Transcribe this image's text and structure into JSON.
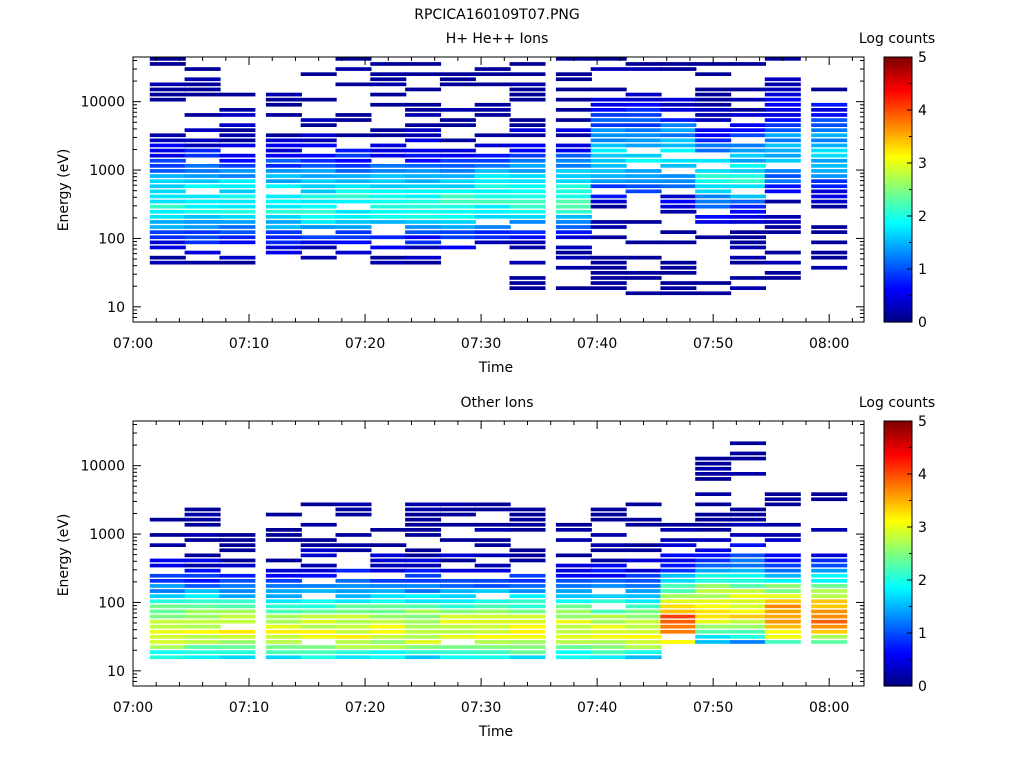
{
  "figure_title": "RPCICA160109T07.PNG",
  "panels": [
    {
      "title": "H+ He++ Ions",
      "ylabel": "Energy (eV)",
      "xlabel": "Time",
      "colorbar_label": "Log counts"
    },
    {
      "title": "Other Ions",
      "ylabel": "Energy (eV)",
      "xlabel": "Time",
      "colorbar_label": "Log counts"
    }
  ],
  "chart_data": [
    {
      "type": "heatmap",
      "title": "H+ He++ Ions",
      "xlabel": "Time",
      "ylabel": "Energy (eV)",
      "x_ticks": [
        "07:00",
        "07:10",
        "07:20",
        "07:30",
        "07:40",
        "07:50",
        "08:00"
      ],
      "xlim": [
        "07:00",
        "08:03"
      ],
      "y_ticks": [
        "10",
        "100",
        "1000",
        "10000"
      ],
      "y_scale": "log",
      "ylim": [
        6,
        45000
      ],
      "colorbar": {
        "label": "Log counts",
        "range": [
          0,
          5
        ],
        "ticks": [
          "0",
          "1",
          "2",
          "3",
          "4",
          "5"
        ],
        "colormap": "jet"
      },
      "time_bins": [
        "07:03",
        "07:06",
        "07:09",
        "07:13",
        "07:16",
        "07:19",
        "07:22",
        "07:25",
        "07:28",
        "07:31",
        "07:34",
        "07:38",
        "07:41",
        "07:44",
        "07:47",
        "07:50",
        "07:53",
        "07:56",
        "08:00"
      ],
      "profiles": [
        {
          "from": "07:03",
          "to": "07:28",
          "energy_range": [
            40,
            42000
          ],
          "peak_energy": 300,
          "peak_log_counts": 2.0
        },
        {
          "from": "07:28",
          "to": "07:38",
          "energy_range": [
            17,
            42000
          ],
          "peak_energy": 350,
          "peak_log_counts": 2.1
        },
        {
          "from": "07:38",
          "to": "07:47",
          "energy_range": [
            13,
            42000
          ],
          "peak_energy": 1400,
          "peak_log_counts": 1.8
        },
        {
          "from": "07:47",
          "to": "07:53",
          "energy_range": [
            15,
            42000
          ],
          "peak_energy": 700,
          "peak_log_counts": 1.9
        },
        {
          "from": "07:53",
          "to": "08:00",
          "energy_range": [
            22,
            42000
          ],
          "peak_energy": 1500,
          "peak_log_counts": 1.6
        }
      ]
    },
    {
      "type": "heatmap",
      "title": "Other Ions",
      "xlabel": "Time",
      "ylabel": "Energy (eV)",
      "x_ticks": [
        "07:00",
        "07:10",
        "07:20",
        "07:30",
        "07:40",
        "07:50",
        "08:00"
      ],
      "xlim": [
        "07:00",
        "08:03"
      ],
      "y_ticks": [
        "10",
        "100",
        "1000",
        "10000"
      ],
      "y_scale": "log",
      "ylim": [
        6,
        45000
      ],
      "colorbar": {
        "label": "Log counts",
        "range": [
          0,
          5
        ],
        "ticks": [
          "0",
          "1",
          "2",
          "3",
          "4",
          "5"
        ],
        "colormap": "jet"
      },
      "time_bins": [
        "07:03",
        "07:06",
        "07:09",
        "07:13",
        "07:16",
        "07:19",
        "07:22",
        "07:25",
        "07:28",
        "07:31",
        "07:34",
        "07:38",
        "07:41",
        "07:44",
        "07:47",
        "07:50",
        "07:53",
        "07:56",
        "08:00"
      ],
      "profiles": [
        {
          "from": "07:03",
          "to": "07:44",
          "energy_range": [
            15,
            3000
          ],
          "peak_energy": 35,
          "peak_log_counts": 3.0
        },
        {
          "from": "07:44",
          "to": "07:47",
          "energy_range": [
            22,
            1800
          ],
          "peak_energy": 45,
          "peak_log_counts": 4.0
        },
        {
          "from": "07:47",
          "to": "07:53",
          "energy_range": [
            22,
            28000
          ],
          "peak_energy": 70,
          "peak_log_counts": 3.2
        },
        {
          "from": "07:53",
          "to": "08:00",
          "energy_range": [
            22,
            4000
          ],
          "peak_energy": 55,
          "peak_log_counts": 3.8
        }
      ]
    }
  ]
}
